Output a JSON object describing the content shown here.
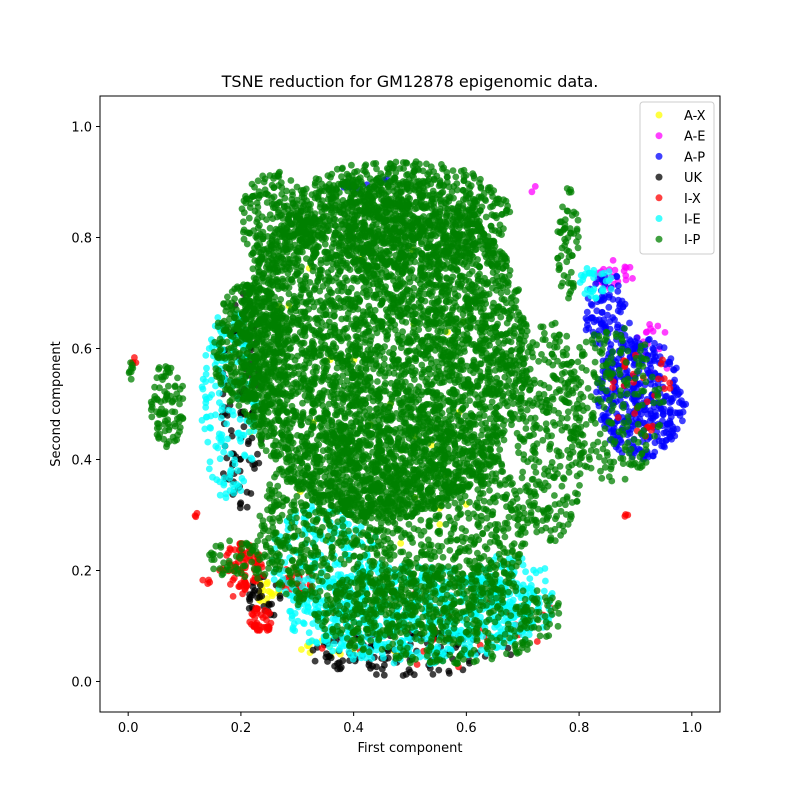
{
  "chart_data": {
    "type": "scatter",
    "title": "TSNE reduction for GM12878 epigenomic data.",
    "xlabel": "First component",
    "ylabel": "Second component",
    "xlim": [
      -0.05,
      1.05
    ],
    "ylim": [
      -0.055,
      1.055
    ],
    "xticks": [
      "0.0",
      "0.2",
      "0.4",
      "0.6",
      "0.8",
      "1.0"
    ],
    "yticks": [
      "0.0",
      "0.2",
      "0.4",
      "0.6",
      "0.8",
      "1.0"
    ],
    "grid": false,
    "legend_position": "top-right",
    "series": [
      {
        "name": "A-X",
        "color": "#ffff00",
        "regions": [
          {
            "cx": 0.25,
            "cy": 0.16,
            "rx": 0.02,
            "ry": 0.03,
            "n": 20
          },
          {
            "cx": 0.4,
            "cy": 0.06,
            "rx": 0.1,
            "ry": 0.02,
            "n": 15
          },
          {
            "cx": 0.45,
            "cy": 0.5,
            "rx": 0.25,
            "ry": 0.3,
            "n": 30
          }
        ]
      },
      {
        "name": "A-E",
        "color": "#ff00ff",
        "regions": [
          {
            "cx": 0.86,
            "cy": 0.73,
            "rx": 0.04,
            "ry": 0.03,
            "n": 25
          },
          {
            "cx": 0.72,
            "cy": 0.89,
            "rx": 0.01,
            "ry": 0.01,
            "n": 2
          },
          {
            "cx": 0.93,
            "cy": 0.6,
            "rx": 0.04,
            "ry": 0.05,
            "n": 15
          }
        ]
      },
      {
        "name": "A-P",
        "color": "#0000ff",
        "regions": [
          {
            "cx": 0.91,
            "cy": 0.51,
            "rx": 0.08,
            "ry": 0.11,
            "n": 380
          },
          {
            "cx": 0.85,
            "cy": 0.65,
            "rx": 0.04,
            "ry": 0.09,
            "n": 90
          },
          {
            "cx": 0.42,
            "cy": 0.9,
            "rx": 0.05,
            "ry": 0.02,
            "n": 8
          }
        ]
      },
      {
        "name": "UK",
        "color": "#000000",
        "regions": [
          {
            "cx": 0.2,
            "cy": 0.5,
            "rx": 0.04,
            "ry": 0.2,
            "n": 100
          },
          {
            "cx": 0.5,
            "cy": 0.05,
            "rx": 0.18,
            "ry": 0.04,
            "n": 120
          },
          {
            "cx": 0.24,
            "cy": 0.15,
            "rx": 0.03,
            "ry": 0.04,
            "n": 30
          }
        ]
      },
      {
        "name": "I-X",
        "color": "#ff0000",
        "regions": [
          {
            "cx": 0.2,
            "cy": 0.2,
            "rx": 0.04,
            "ry": 0.05,
            "n": 90
          },
          {
            "cx": 0.235,
            "cy": 0.11,
            "rx": 0.02,
            "ry": 0.025,
            "n": 40
          },
          {
            "cx": 0.3,
            "cy": 0.18,
            "rx": 0.03,
            "ry": 0.03,
            "n": 30
          },
          {
            "cx": 0.12,
            "cy": 0.3,
            "rx": 0.004,
            "ry": 0.004,
            "n": 3
          },
          {
            "cx": 0.14,
            "cy": 0.18,
            "rx": 0.01,
            "ry": 0.005,
            "n": 4
          },
          {
            "cx": 0.01,
            "cy": 0.575,
            "rx": 0.004,
            "ry": 0.01,
            "n": 4
          },
          {
            "cx": 0.885,
            "cy": 0.3,
            "rx": 0.005,
            "ry": 0.005,
            "n": 3
          },
          {
            "cx": 0.91,
            "cy": 0.52,
            "rx": 0.06,
            "ry": 0.08,
            "n": 30
          },
          {
            "cx": 0.55,
            "cy": 0.1,
            "rx": 0.25,
            "ry": 0.08,
            "n": 30
          }
        ]
      },
      {
        "name": "I-E",
        "color": "#00ffff",
        "regions": [
          {
            "cx": 0.5,
            "cy": 0.12,
            "rx": 0.22,
            "ry": 0.09,
            "n": 600
          },
          {
            "cx": 0.18,
            "cy": 0.5,
            "rx": 0.05,
            "ry": 0.18,
            "n": 160
          },
          {
            "cx": 0.35,
            "cy": 0.22,
            "rx": 0.1,
            "ry": 0.1,
            "n": 180
          },
          {
            "cx": 0.83,
            "cy": 0.72,
            "rx": 0.03,
            "ry": 0.03,
            "n": 30
          },
          {
            "cx": 0.68,
            "cy": 0.15,
            "rx": 0.08,
            "ry": 0.08,
            "n": 120
          }
        ]
      },
      {
        "name": "I-P",
        "color": "#008000",
        "regions": [
          {
            "cx": 0.45,
            "cy": 0.6,
            "rx": 0.26,
            "ry": 0.31,
            "n": 4200
          },
          {
            "cx": 0.48,
            "cy": 0.84,
            "rx": 0.2,
            "ry": 0.1,
            "n": 700
          },
          {
            "cx": 0.47,
            "cy": 0.28,
            "rx": 0.24,
            "ry": 0.2,
            "n": 1400
          },
          {
            "cx": 0.55,
            "cy": 0.12,
            "rx": 0.22,
            "ry": 0.09,
            "n": 500
          },
          {
            "cx": 0.07,
            "cy": 0.5,
            "rx": 0.03,
            "ry": 0.08,
            "n": 90
          },
          {
            "cx": 0.005,
            "cy": 0.56,
            "rx": 0.004,
            "ry": 0.02,
            "n": 8
          },
          {
            "cx": 0.78,
            "cy": 0.79,
            "rx": 0.02,
            "ry": 0.1,
            "n": 60
          },
          {
            "cx": 0.86,
            "cy": 0.5,
            "rx": 0.09,
            "ry": 0.14,
            "n": 220
          },
          {
            "cx": 0.26,
            "cy": 0.83,
            "rx": 0.06,
            "ry": 0.09,
            "n": 200
          },
          {
            "cx": 0.22,
            "cy": 0.6,
            "rx": 0.07,
            "ry": 0.12,
            "n": 350
          },
          {
            "cx": 0.75,
            "cy": 0.45,
            "rx": 0.06,
            "ry": 0.2,
            "n": 300
          },
          {
            "cx": 0.2,
            "cy": 0.22,
            "rx": 0.06,
            "ry": 0.04,
            "n": 60
          }
        ]
      }
    ]
  }
}
